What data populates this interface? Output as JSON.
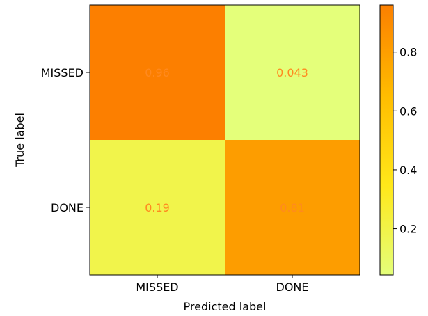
{
  "chart_data": {
    "type": "heatmap",
    "title": "",
    "xlabel": "Predicted label",
    "ylabel": "True label",
    "x_categories": [
      "MISSED",
      "DONE"
    ],
    "y_categories": [
      "MISSED",
      "DONE"
    ],
    "values": [
      [
        0.96,
        0.043
      ],
      [
        0.19,
        0.81
      ]
    ],
    "cell_labels": [
      [
        "0.96",
        "0.043"
      ],
      [
        "0.19",
        "0.81"
      ]
    ],
    "colormap": "Wistia",
    "colorbar": {
      "range": [
        0.043,
        0.96
      ],
      "ticks": [
        0.2,
        0.4,
        0.6,
        0.8
      ],
      "tick_labels": [
        "0.2",
        "0.4",
        "0.6",
        "0.8"
      ]
    },
    "annotation_color": "#ff8a1f",
    "grid": false
  }
}
